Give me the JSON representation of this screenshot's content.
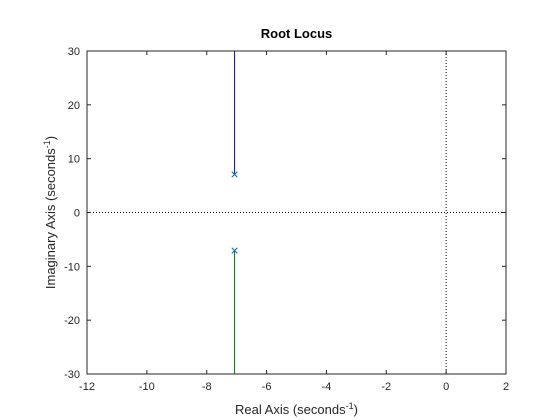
{
  "chart_data": {
    "type": "line",
    "title": "Root Locus",
    "xlabel": {
      "text": "Real Axis (seconds",
      "sup": "-1",
      "tail": ")"
    },
    "ylabel": {
      "text": "Imaginary Axis (seconds",
      "sup": "-1",
      "tail": ")"
    },
    "xlim": [
      -12,
      2
    ],
    "ylim": [
      -30,
      30
    ],
    "xticks": [
      -12,
      -10,
      -8,
      -6,
      -4,
      -2,
      0,
      2
    ],
    "yticks": [
      -30,
      -20,
      -10,
      0,
      10,
      20,
      30
    ],
    "grid": false,
    "reference_lines": {
      "x": 0,
      "y": 0,
      "style": "dotted",
      "color": "#000000"
    },
    "series": [
      {
        "color": "#0000ff",
        "points": [
          [
            -7.07,
            7.07
          ],
          [
            -7.07,
            30
          ]
        ]
      },
      {
        "color": "#008000",
        "points": [
          [
            -7.07,
            -7.07
          ],
          [
            -7.07,
            -30
          ]
        ]
      }
    ],
    "poles": {
      "marker": "x",
      "color": "#0072bd",
      "points": [
        [
          -7.07,
          7.07
        ],
        [
          -7.07,
          -7.07
        ]
      ]
    },
    "axis_color": "#262626"
  }
}
